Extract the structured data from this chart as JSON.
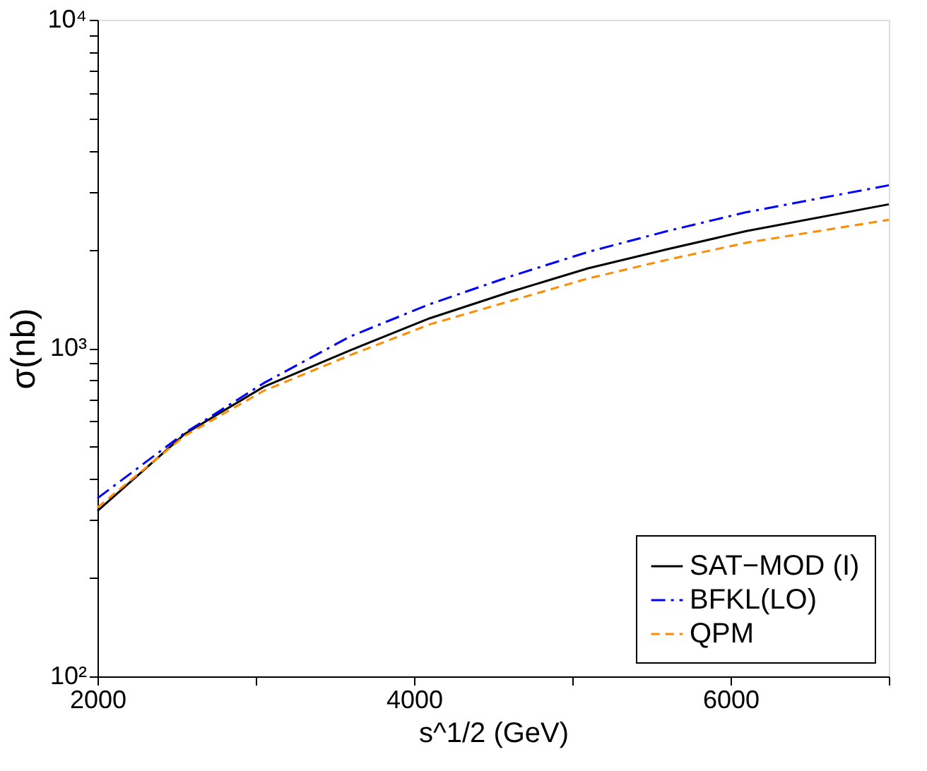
{
  "chart_data": {
    "type": "line",
    "xlabel": "s^1/2 (GeV)",
    "ylabel": "σ(nb)",
    "x": [
      2000,
      2550,
      3050,
      3600,
      4100,
      4600,
      5100,
      5600,
      6100,
      7000
    ],
    "series": [
      {
        "name": "SAT−MOD (I)",
        "color": "#000000",
        "line_style": "solid",
        "values": [
          319,
          547,
          762,
          986,
          1233,
          1479,
          1750,
          2000,
          2272,
          2741
        ]
      },
      {
        "name": "BFKL(LO)",
        "color": "#0000ff",
        "line_style": "dashdot",
        "values": [
          349,
          551,
          782,
          1087,
          1361,
          1648,
          1963,
          2272,
          2594,
          3133
        ]
      },
      {
        "name": "QPM",
        "color": "#ff8c00",
        "line_style": "dashed",
        "values": [
          327,
          540,
          741,
          953,
          1181,
          1387,
          1630,
          1858,
          2094,
          2459
        ]
      }
    ],
    "xlim": [
      2000,
      7000
    ],
    "xticks": [
      2000,
      {
        "value": 3000,
        "label": null
      },
      4000,
      {
        "value": 5000,
        "label": null
      },
      6000,
      {
        "value": 7000,
        "label": null
      }
    ],
    "ylim": [
      100,
      10000
    ],
    "log": "y",
    "yticks": [
      {
        "value": 100,
        "label": "10²"
      },
      {
        "value": 200,
        "label": null
      },
      {
        "value": 300,
        "label": null
      },
      {
        "value": 400,
        "label": null
      },
      {
        "value": 500,
        "label": null
      },
      {
        "value": 600,
        "label": null
      },
      {
        "value": 700,
        "label": null
      },
      {
        "value": 800,
        "label": null
      },
      {
        "value": 900,
        "label": null
      },
      {
        "value": 1000,
        "label": "10³"
      },
      {
        "value": 2000,
        "label": null
      },
      {
        "value": 3000,
        "label": null
      },
      {
        "value": 4000,
        "label": null
      },
      {
        "value": 5000,
        "label": null
      },
      {
        "value": 6000,
        "label": null
      },
      {
        "value": 7000,
        "label": null
      },
      {
        "value": 8000,
        "label": null
      },
      {
        "value": 9000,
        "label": null
      },
      {
        "value": 10000,
        "label": "10⁴"
      }
    ],
    "grid": false,
    "legend": "bottom right"
  }
}
